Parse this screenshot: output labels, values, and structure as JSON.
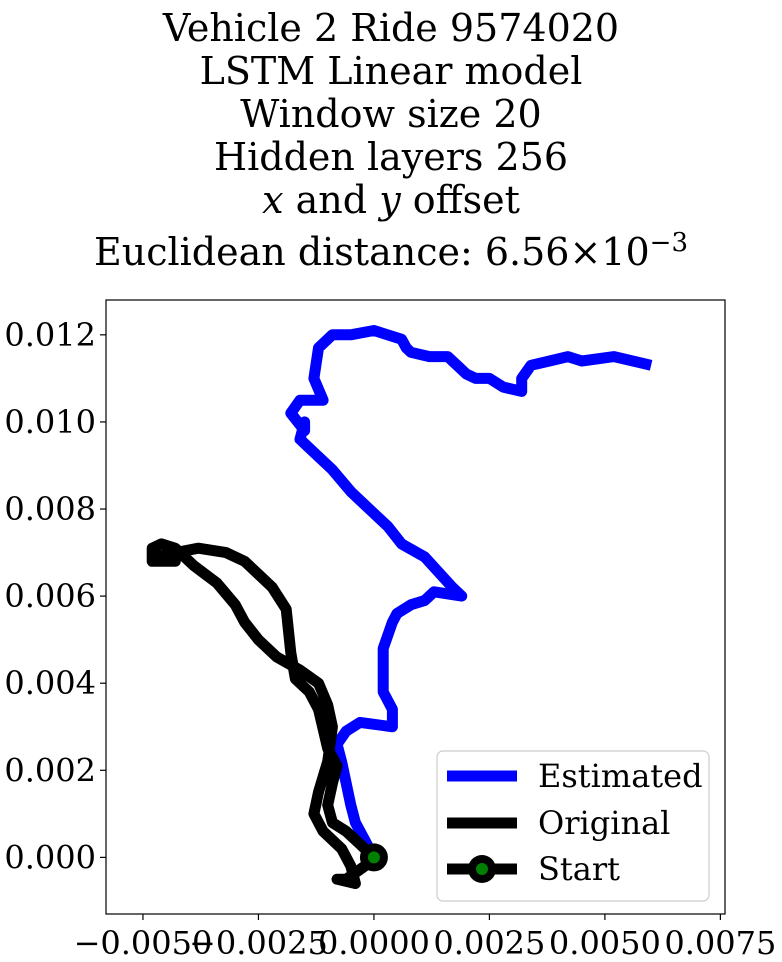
{
  "chart_data": {
    "type": "line",
    "title_lines": [
      "Vehicle 2 Ride 9574020",
      "LSTM Linear model",
      "Window size 20",
      "Hidden layers 256",
      "x and y offset",
      "Euclidean distance: 6.56×10⁻³"
    ],
    "title_parts": {
      "offset_x": "x",
      "offset_and": " and ",
      "offset_y": "y",
      "offset_suffix": " offset",
      "dist_prefix": "Euclidean distance: 6.56×10",
      "dist_exp": "−3"
    },
    "xlim": [
      -0.0058,
      0.0076
    ],
    "ylim": [
      -0.0013,
      0.0128
    ],
    "x_ticks": [
      -0.005,
      -0.0025,
      0.0,
      0.0025,
      0.005,
      0.0075
    ],
    "x_tick_labels": [
      "−0.0050",
      "−0.0025",
      "0.0000",
      "0.0025",
      "0.0050",
      "0.0075"
    ],
    "y_ticks": [
      0.0,
      0.002,
      0.004,
      0.006,
      0.008,
      0.01,
      0.012
    ],
    "y_tick_labels": [
      "0.000",
      "0.002",
      "0.004",
      "0.006",
      "0.008",
      "0.010",
      "0.012"
    ],
    "grid": false,
    "legend_position": "lower-right",
    "series": [
      {
        "name": "Estimated",
        "color": "#0000ff",
        "points": [
          [
            0.0,
            0.0
          ],
          [
            -0.0002,
            0.0004
          ],
          [
            -0.0004,
            0.0008
          ],
          [
            -0.0005,
            0.0012
          ],
          [
            -0.0006,
            0.0017
          ],
          [
            -0.0007,
            0.0022
          ],
          [
            -0.0008,
            0.0026
          ],
          [
            -0.0006,
            0.0029
          ],
          [
            -0.0003,
            0.0031
          ],
          [
            0.0004,
            0.003
          ],
          [
            0.0004,
            0.0034
          ],
          [
            0.0002,
            0.0038
          ],
          [
            0.0002,
            0.0043
          ],
          [
            0.0002,
            0.0048
          ],
          [
            0.0004,
            0.0054
          ],
          [
            0.0005,
            0.0056
          ],
          [
            0.0008,
            0.0058
          ],
          [
            0.0011,
            0.0059
          ],
          [
            0.0013,
            0.0061
          ],
          [
            0.0019,
            0.006
          ],
          [
            0.0017,
            0.0062
          ],
          [
            0.0011,
            0.0069
          ],
          [
            0.0006,
            0.0072
          ],
          [
            0.0003,
            0.0076
          ],
          [
            0.0,
            0.0079
          ],
          [
            -0.0005,
            0.0084
          ],
          [
            -0.0009,
            0.0089
          ],
          [
            -0.0013,
            0.0093
          ],
          [
            -0.0016,
            0.0096
          ],
          [
            -0.0015,
            0.01
          ],
          [
            -0.0015,
            0.0098
          ],
          [
            -0.0018,
            0.0102
          ],
          [
            -0.0016,
            0.0105
          ],
          [
            -0.0011,
            0.0105
          ],
          [
            -0.0013,
            0.011
          ],
          [
            -0.0012,
            0.0117
          ],
          [
            -0.0009,
            0.012
          ],
          [
            -0.0005,
            0.012
          ],
          [
            0.0,
            0.0121
          ],
          [
            0.0006,
            0.0119
          ],
          [
            0.0007,
            0.0117
          ],
          [
            0.0008,
            0.0116
          ],
          [
            0.0012,
            0.0115
          ],
          [
            0.0016,
            0.0115
          ],
          [
            0.0018,
            0.0113
          ],
          [
            0.002,
            0.0111
          ],
          [
            0.0022,
            0.011
          ],
          [
            0.0025,
            0.011
          ],
          [
            0.0028,
            0.0108
          ],
          [
            0.0032,
            0.0107
          ],
          [
            0.0032,
            0.011
          ],
          [
            0.0034,
            0.0113
          ],
          [
            0.0038,
            0.0114
          ],
          [
            0.0042,
            0.0115
          ],
          [
            0.0045,
            0.0114
          ],
          [
            0.0052,
            0.0115
          ],
          [
            0.006,
            0.0113
          ]
        ]
      },
      {
        "name": "Original",
        "color": "#000000",
        "points": [
          [
            0.0,
            0.0
          ],
          [
            -0.0003,
            0.0003
          ],
          [
            -0.0006,
            0.0006
          ],
          [
            -0.0009,
            0.0008
          ],
          [
            -0.001,
            0.0012
          ],
          [
            -0.0009,
            0.0017
          ],
          [
            -0.0008,
            0.0021
          ],
          [
            -0.001,
            0.0025
          ],
          [
            -0.0012,
            0.0034
          ],
          [
            -0.0014,
            0.0038
          ],
          [
            -0.0017,
            0.0041
          ],
          [
            -0.0018,
            0.0047
          ],
          [
            -0.0019,
            0.0057
          ],
          [
            -0.0022,
            0.0062
          ],
          [
            -0.0025,
            0.0065
          ],
          [
            -0.0028,
            0.0068
          ],
          [
            -0.0032,
            0.007
          ],
          [
            -0.0038,
            0.0071
          ],
          [
            -0.0043,
            0.007
          ],
          [
            -0.0047,
            0.0069
          ],
          [
            -0.0043,
            0.0068
          ],
          [
            -0.0048,
            0.0068
          ],
          [
            -0.0048,
            0.0071
          ],
          [
            -0.0046,
            0.0072
          ],
          [
            -0.0043,
            0.0071
          ],
          [
            -0.0039,
            0.0067
          ],
          [
            -0.0034,
            0.0063
          ],
          [
            -0.003,
            0.0058
          ],
          [
            -0.0028,
            0.0054
          ],
          [
            -0.0025,
            0.005
          ],
          [
            -0.0021,
            0.0046
          ],
          [
            -0.0016,
            0.0043
          ],
          [
            -0.0012,
            0.004
          ],
          [
            -0.001,
            0.0035
          ],
          [
            -0.0009,
            0.003
          ],
          [
            -0.001,
            0.0022
          ],
          [
            -0.0012,
            0.0015
          ],
          [
            -0.0013,
            0.001
          ],
          [
            -0.0011,
            0.0006
          ],
          [
            -0.0007,
            0.0002
          ],
          [
            -0.0005,
            -0.0002
          ],
          [
            -0.0004,
            -0.0006
          ],
          [
            -0.0008,
            -0.0005
          ],
          [
            -0.0006,
            -0.0005
          ],
          [
            -0.0002,
            -0.0002
          ],
          [
            0.0,
            0.0
          ]
        ]
      },
      {
        "name": "Start",
        "color": "#000000",
        "marker_color": "#008000",
        "points": [
          [
            0.0,
            0.0
          ]
        ]
      }
    ]
  }
}
